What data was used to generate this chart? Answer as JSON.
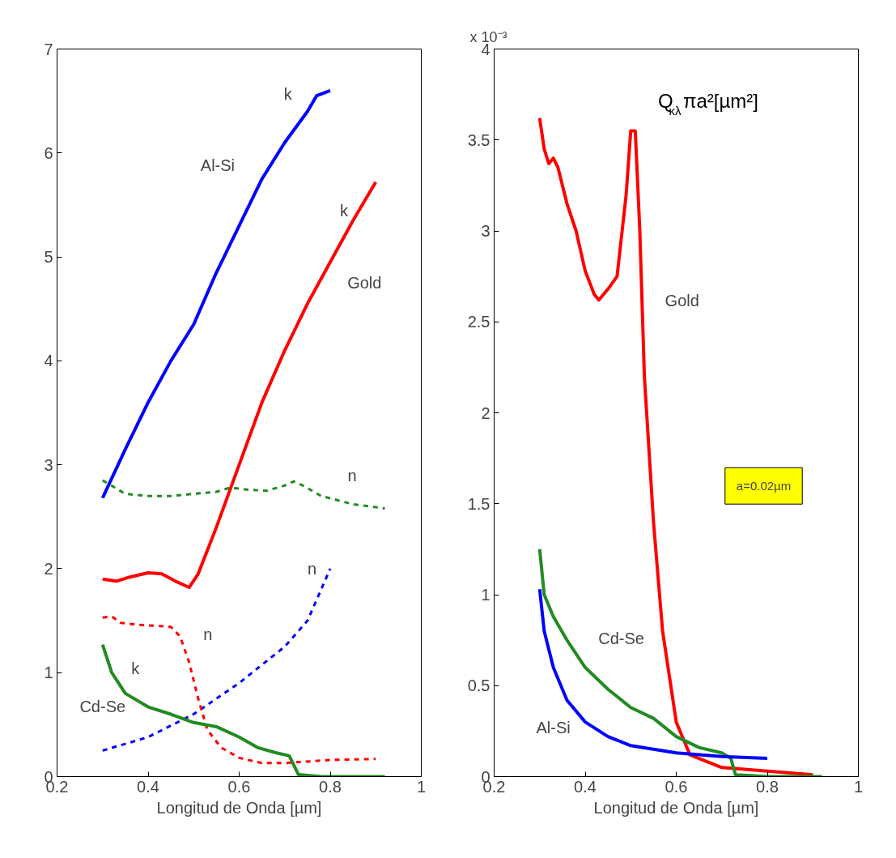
{
  "chart_data": [
    {
      "type": "line",
      "xlabel": "Longitud de Onda [µm]",
      "xlim": [
        0.2,
        1
      ],
      "xticks": [
        0.2,
        0.4,
        0.6,
        0.8,
        1
      ],
      "ylim": [
        0,
        7
      ],
      "yticks": [
        0,
        1,
        2,
        3,
        4,
        5,
        6,
        7
      ],
      "grid": false,
      "series": [
        {
          "color": "#0000ff",
          "line_style": "solid",
          "x": [
            0.3,
            0.35,
            0.4,
            0.45,
            0.5,
            0.55,
            0.6,
            0.65,
            0.7,
            0.75,
            0.77,
            0.8
          ],
          "values": [
            2.68,
            3.15,
            3.6,
            4.0,
            4.35,
            4.85,
            5.3,
            5.75,
            6.1,
            6.4,
            6.55,
            6.6
          ]
        },
        {
          "color": "#ff0000",
          "line_style": "solid",
          "x": [
            0.3,
            0.33,
            0.36,
            0.4,
            0.43,
            0.46,
            0.49,
            0.51,
            0.55,
            0.6,
            0.65,
            0.7,
            0.75,
            0.8,
            0.85,
            0.9
          ],
          "values": [
            1.9,
            1.88,
            1.92,
            1.96,
            1.95,
            1.88,
            1.82,
            1.95,
            2.4,
            3.0,
            3.6,
            4.1,
            4.55,
            4.95,
            5.35,
            5.72
          ]
        },
        {
          "color": "#228b22",
          "line_style": "dashed",
          "x": [
            0.3,
            0.35,
            0.4,
            0.45,
            0.5,
            0.55,
            0.58,
            0.62,
            0.66,
            0.7,
            0.72,
            0.74,
            0.78,
            0.85,
            0.92
          ],
          "values": [
            2.85,
            2.72,
            2.7,
            2.7,
            2.72,
            2.74,
            2.78,
            2.76,
            2.75,
            2.8,
            2.84,
            2.8,
            2.7,
            2.62,
            2.58
          ]
        },
        {
          "color": "#0000ff",
          "line_style": "dashed",
          "x": [
            0.3,
            0.4,
            0.5,
            0.6,
            0.7,
            0.75,
            0.8
          ],
          "values": [
            0.25,
            0.38,
            0.6,
            0.9,
            1.25,
            1.5,
            2.0
          ]
        },
        {
          "color": "#ff0000",
          "line_style": "dashed",
          "x": [
            0.3,
            0.32,
            0.34,
            0.38,
            0.42,
            0.45,
            0.47,
            0.49,
            0.51,
            0.53,
            0.56,
            0.6,
            0.65,
            0.7,
            0.8,
            0.9
          ],
          "values": [
            1.53,
            1.54,
            1.48,
            1.46,
            1.45,
            1.44,
            1.35,
            1.1,
            0.75,
            0.45,
            0.28,
            0.18,
            0.13,
            0.13,
            0.16,
            0.17
          ]
        },
        {
          "color": "#228b22",
          "line_style": "solid",
          "x": [
            0.3,
            0.32,
            0.35,
            0.4,
            0.45,
            0.5,
            0.55,
            0.6,
            0.64,
            0.68,
            0.71,
            0.73,
            0.78,
            0.92
          ],
          "values": [
            1.27,
            1.0,
            0.8,
            0.67,
            0.6,
            0.52,
            0.48,
            0.38,
            0.28,
            0.23,
            0.2,
            0.02,
            0.0,
            0.0
          ]
        }
      ],
      "annotations": [
        "k",
        "Al-Si",
        "k",
        "Gold",
        "n",
        "n",
        "n",
        "k",
        "Cd-Se"
      ]
    },
    {
      "type": "line",
      "xlabel": "Longitud de Onda [µm]",
      "xlim": [
        0.2,
        1
      ],
      "xticks": [
        0.2,
        0.4,
        0.6,
        0.8,
        1
      ],
      "ylim": [
        0,
        4
      ],
      "yticks": [
        0,
        0.5,
        1,
        1.5,
        2,
        2.5,
        3,
        3.5,
        4
      ],
      "grid": false,
      "series": [
        {
          "color": "#ff0000",
          "line_style": "solid",
          "x": [
            0.3,
            0.31,
            0.32,
            0.33,
            0.34,
            0.36,
            0.38,
            0.4,
            0.42,
            0.43,
            0.45,
            0.47,
            0.49,
            0.5,
            0.51,
            0.52,
            0.53,
            0.55,
            0.57,
            0.6,
            0.63,
            0.7,
            0.8,
            0.9
          ],
          "values": [
            3.62,
            3.45,
            3.37,
            3.4,
            3.35,
            3.15,
            3.0,
            2.78,
            2.65,
            2.62,
            2.68,
            2.75,
            3.2,
            3.55,
            3.55,
            3.0,
            2.2,
            1.4,
            0.8,
            0.3,
            0.12,
            0.05,
            0.03,
            0.01
          ]
        },
        {
          "color": "#228b22",
          "line_style": "solid",
          "x": [
            0.3,
            0.31,
            0.33,
            0.36,
            0.4,
            0.45,
            0.5,
            0.55,
            0.6,
            0.65,
            0.7,
            0.72,
            0.73,
            0.8,
            0.92
          ],
          "values": [
            1.25,
            1.0,
            0.88,
            0.75,
            0.6,
            0.48,
            0.38,
            0.32,
            0.22,
            0.16,
            0.13,
            0.1,
            0.01,
            0.0,
            0.0
          ]
        },
        {
          "color": "#0000ff",
          "line_style": "solid",
          "x": [
            0.3,
            0.31,
            0.33,
            0.36,
            0.4,
            0.45,
            0.5,
            0.6,
            0.7,
            0.8
          ],
          "values": [
            1.03,
            0.8,
            0.6,
            0.42,
            0.3,
            0.22,
            0.17,
            0.13,
            0.11,
            0.1
          ]
        }
      ],
      "annotations": [
        "x 10⁻³",
        "Q$_{κλ}$πa²[µm²]",
        "a=0.02µm",
        "Gold",
        "Cd-Se",
        "Al-Si"
      ]
    }
  ]
}
